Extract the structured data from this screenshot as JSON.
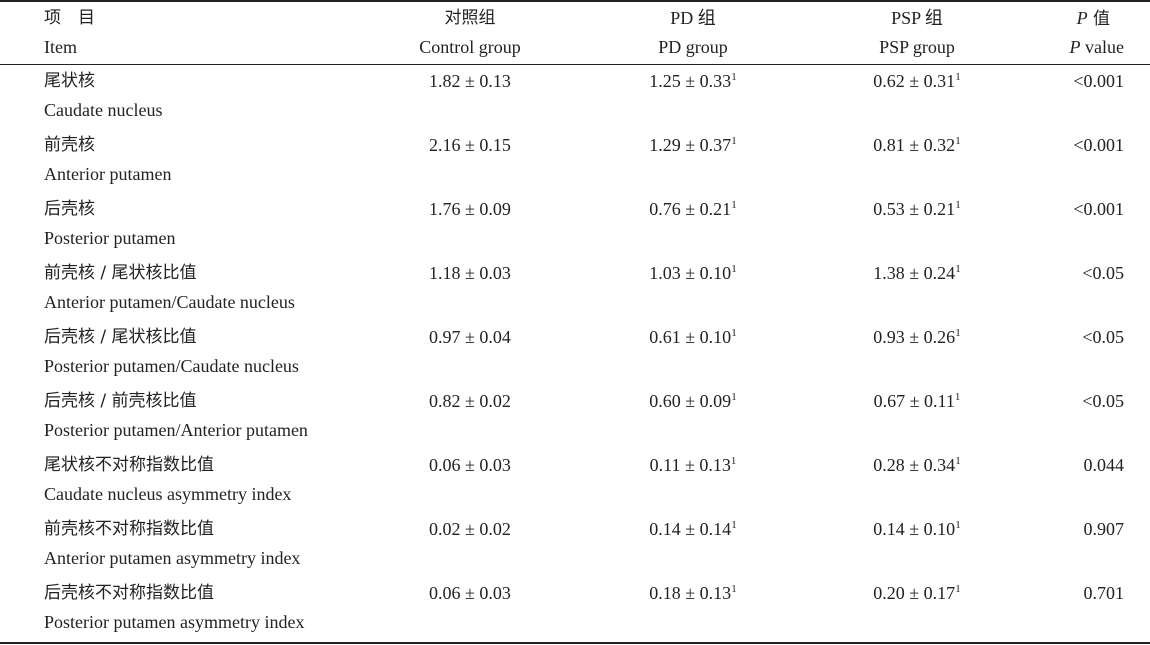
{
  "header": {
    "item_cn": "项　目",
    "item_en": "Item",
    "control_cn": "对照组",
    "control_en": "Control group",
    "pd_cn": "PD 组",
    "pd_en": "PD group",
    "psp_cn": "PSP 组",
    "psp_en": "PSP group",
    "p_cn_italic": "P",
    "p_cn_rest": " 值",
    "p_en_italic": "P",
    "p_en_rest": " value"
  },
  "rows": [
    {
      "cn": "尾状核",
      "en": "Caudate nucleus",
      "control": "1.82 ± 0.13",
      "pd": "1.25 ± 0.33",
      "pd_sup": "1",
      "psp": "0.62 ± 0.31",
      "psp_sup": "1",
      "p": "<0.001"
    },
    {
      "cn": "前壳核",
      "en": "Anterior putamen",
      "control": "2.16 ± 0.15",
      "pd": "1.29 ± 0.37",
      "pd_sup": "1",
      "psp": "0.81 ± 0.32",
      "psp_sup": "1",
      "p": "<0.001"
    },
    {
      "cn": "后壳核",
      "en": "Posterior putamen",
      "control": "1.76 ± 0.09",
      "pd": "0.76 ± 0.21",
      "pd_sup": "1",
      "psp": "0.53 ± 0.21",
      "psp_sup": "1",
      "p": "<0.001"
    },
    {
      "cn": "前壳核 / 尾状核比值",
      "en": "Anterior putamen/Caudate nucleus",
      "control": "1.18 ± 0.03",
      "pd": "1.03 ± 0.10",
      "pd_sup": "1",
      "psp": "1.38 ± 0.24",
      "psp_sup": "1",
      "p": "<0.05"
    },
    {
      "cn": "后壳核 / 尾状核比值",
      "en": "Posterior putamen/Caudate nucleus",
      "control": "0.97 ± 0.04",
      "pd": "0.61 ± 0.10",
      "pd_sup": "1",
      "psp": "0.93 ± 0.26",
      "psp_sup": "1",
      "p": "<0.05"
    },
    {
      "cn": "后壳核 / 前壳核比值",
      "en": "Posterior putamen/Anterior putamen",
      "control": "0.82 ± 0.02",
      "pd": "0.60 ± 0.09",
      "pd_sup": "1",
      "psp": "0.67 ± 0.11",
      "psp_sup": "1",
      "p": "<0.05"
    },
    {
      "cn": "尾状核不对称指数比值",
      "en": "Caudate nucleus asymmetry index",
      "control": "0.06 ± 0.03",
      "pd": "0.11 ± 0.13",
      "pd_sup": "1",
      "psp": "0.28 ± 0.34",
      "psp_sup": "1",
      "p": "0.044"
    },
    {
      "cn": "前壳核不对称指数比值",
      "en": "Anterior putamen asymmetry index",
      "control": "0.02 ± 0.02",
      "pd": "0.14 ± 0.14",
      "pd_sup": "1",
      "psp": "0.14 ± 0.10",
      "psp_sup": "1",
      "p": "0.907"
    },
    {
      "cn": "后壳核不对称指数比值",
      "en": "Posterior putamen asymmetry index",
      "control": "0.06 ± 0.03",
      "pd": "0.18 ± 0.13",
      "pd_sup": "1",
      "psp": "0.20 ± 0.17",
      "psp_sup": "1",
      "p": "0.701"
    }
  ]
}
